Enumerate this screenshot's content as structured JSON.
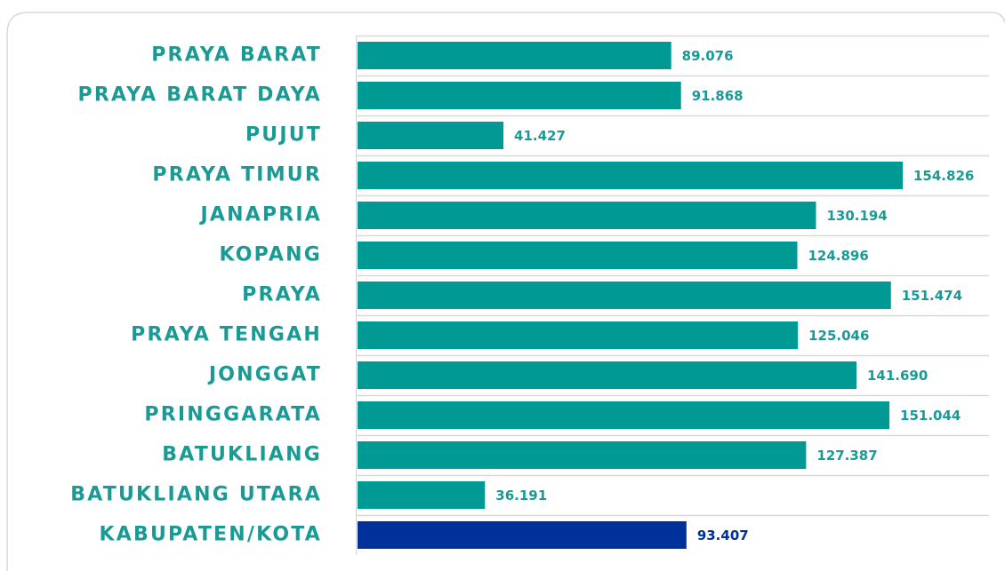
{
  "chart_data": {
    "type": "bar",
    "orientation": "horizontal",
    "categories": [
      "PRAYA BARAT",
      "PRAYA BARAT DAYA",
      "PUJUT",
      "PRAYA TIMUR",
      "JANAPRIA",
      "KOPANG",
      "PRAYA",
      "PRAYA TENGAH",
      "JONGGAT",
      "PRINGGARATA",
      "BATUKLIANG",
      "BATUKLIANG UTARA",
      "KABUPATEN/KOTA"
    ],
    "values": [
      89.076,
      91.868,
      41.427,
      154.826,
      130.194,
      124.896,
      151.474,
      125.046,
      141.69,
      151.044,
      127.387,
      36.191,
      93.407
    ],
    "value_labels": [
      "89.076",
      "91.868",
      "41.427",
      "154.826",
      "130.194",
      "124.896",
      "151.474",
      "125.046",
      "141.690",
      "151.044",
      "127.387",
      "36.191",
      "93.407"
    ],
    "colors": [
      "#009993",
      "#009993",
      "#009993",
      "#009993",
      "#009993",
      "#009993",
      "#009993",
      "#009993",
      "#009993",
      "#009993",
      "#009993",
      "#009993",
      "#00309a"
    ],
    "label_colors": [
      "#1a9a94",
      "#1a9a94",
      "#1a9a94",
      "#1a9a94",
      "#1a9a94",
      "#1a9a94",
      "#1a9a94",
      "#1a9a94",
      "#1a9a94",
      "#1a9a94",
      "#1a9a94",
      "#1a9a94",
      "#00309a"
    ]
  }
}
